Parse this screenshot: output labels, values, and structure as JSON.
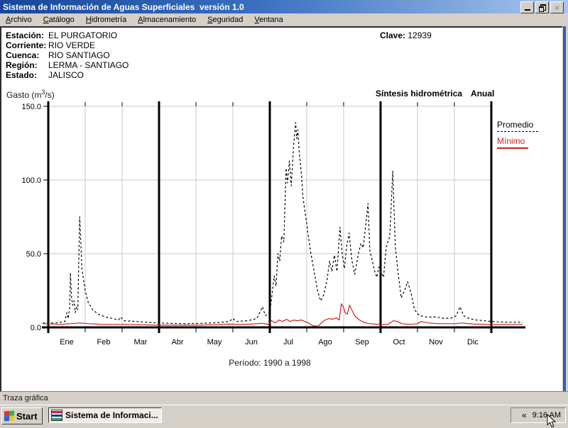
{
  "window": {
    "title": "Sistema de Información de Aguas Superficiales  versión 1.0",
    "close_glyph": "×"
  },
  "menu": {
    "items": [
      {
        "accel": "A",
        "rest": "rchivo"
      },
      {
        "accel": "C",
        "rest": "atálogo"
      },
      {
        "accel": "H",
        "rest": "idrometría"
      },
      {
        "accel": "A",
        "rest": "lmacenamiento"
      },
      {
        "accel": "S",
        "rest": "eguridad"
      },
      {
        "accel": "V",
        "rest": "entana"
      }
    ]
  },
  "station": {
    "rows": [
      {
        "label": "Estación:",
        "value": "EL PURGATORIO"
      },
      {
        "label": "Corriente:",
        "value": "RIO VERDE"
      },
      {
        "label": "Cuenca:",
        "value": "RIO SANTIAGO"
      },
      {
        "label": "Región:",
        "value": "LERMA - SANTIAGO"
      },
      {
        "label": "Estado:",
        "value": "JALISCO"
      }
    ],
    "clave_label": "Clave:",
    "clave_value": "12939"
  },
  "chart": {
    "ylabel_prefix": "Gasto (m",
    "ylabel_sup": "3",
    "ylabel_suffix": "/s)",
    "title_left": "Síntesis hidrométrica",
    "title_right": "Anual",
    "period_label": "Período: 1990 a 1998"
  },
  "status_bar": {
    "text": "Traza gráfica"
  },
  "taskbar": {
    "start_label": "Start",
    "task_label": "Sistema de Informaci...",
    "tray_chevron": "«",
    "clock": "9:16 AM"
  },
  "chart_data": {
    "type": "line",
    "title": "Síntesis hidrométrica Anual",
    "ylabel": "Gasto (m3/s)",
    "period": "Período: 1990 a 1998",
    "x_categories": [
      "Ene",
      "Feb",
      "Mar",
      "Abr",
      "May",
      "Jun",
      "Jul",
      "Ago",
      "Sep",
      "Oct",
      "Nov",
      "Dic"
    ],
    "ylim": [
      0,
      150
    ],
    "yticks": [
      0,
      50,
      100,
      150
    ],
    "ytick_labels": [
      "0.0",
      "50.0",
      "100.0",
      "150.0"
    ],
    "quarter_lines_months": [
      0,
      3,
      6,
      9,
      12
    ],
    "grid": true,
    "legend_position": "right",
    "series": [
      {
        "name": "Promedio",
        "color": "#000000",
        "style": "dashed",
        "points": [
          [
            -0.15,
            3
          ],
          [
            0.0,
            3
          ],
          [
            0.2,
            3
          ],
          [
            0.35,
            3.5
          ],
          [
            0.45,
            4
          ],
          [
            0.5,
            10
          ],
          [
            0.54,
            6
          ],
          [
            0.58,
            14
          ],
          [
            0.6,
            37
          ],
          [
            0.63,
            20
          ],
          [
            0.66,
            15
          ],
          [
            0.7,
            18
          ],
          [
            0.73,
            10
          ],
          [
            0.77,
            14
          ],
          [
            0.8,
            12
          ],
          [
            0.85,
            75
          ],
          [
            0.88,
            58
          ],
          [
            0.91,
            40
          ],
          [
            0.95,
            33
          ],
          [
            1.0,
            25
          ],
          [
            1.08,
            17
          ],
          [
            1.2,
            12
          ],
          [
            1.35,
            9
          ],
          [
            1.55,
            7
          ],
          [
            1.75,
            6
          ],
          [
            1.9,
            5
          ],
          [
            1.96,
            7
          ],
          [
            2.05,
            4.5
          ],
          [
            2.4,
            4
          ],
          [
            2.8,
            3.2
          ],
          [
            3.2,
            2.8
          ],
          [
            3.7,
            2.5
          ],
          [
            4.2,
            2.8
          ],
          [
            4.6,
            3.2
          ],
          [
            4.9,
            4
          ],
          [
            5.0,
            6
          ],
          [
            5.1,
            4
          ],
          [
            5.4,
            4.5
          ],
          [
            5.65,
            6
          ],
          [
            5.8,
            14
          ],
          [
            5.88,
            8
          ],
          [
            6.0,
            10
          ],
          [
            6.06,
            22
          ],
          [
            6.12,
            35
          ],
          [
            6.17,
            28
          ],
          [
            6.22,
            50
          ],
          [
            6.27,
            45
          ],
          [
            6.32,
            62
          ],
          [
            6.38,
            58
          ],
          [
            6.44,
            108
          ],
          [
            6.48,
            98
          ],
          [
            6.53,
            113
          ],
          [
            6.58,
            96
          ],
          [
            6.64,
            122
          ],
          [
            6.7,
            139
          ],
          [
            6.73,
            128
          ],
          [
            6.76,
            134
          ],
          [
            6.8,
            118
          ],
          [
            6.85,
            106
          ],
          [
            6.9,
            88
          ],
          [
            7.0,
            70
          ],
          [
            7.1,
            52
          ],
          [
            7.2,
            38
          ],
          [
            7.3,
            24
          ],
          [
            7.38,
            18
          ],
          [
            7.46,
            22
          ],
          [
            7.55,
            32
          ],
          [
            7.62,
            45
          ],
          [
            7.68,
            38
          ],
          [
            7.75,
            49
          ],
          [
            7.82,
            38
          ],
          [
            7.9,
            68
          ],
          [
            7.96,
            50
          ],
          [
            8.02,
            40
          ],
          [
            8.08,
            55
          ],
          [
            8.15,
            64
          ],
          [
            8.22,
            46
          ],
          [
            8.3,
            36
          ],
          [
            8.4,
            50
          ],
          [
            8.47,
            57
          ],
          [
            8.53,
            54
          ],
          [
            8.6,
            70
          ],
          [
            8.66,
            84
          ],
          [
            8.71,
            52
          ],
          [
            8.77,
            46
          ],
          [
            8.84,
            38
          ],
          [
            8.9,
            34
          ],
          [
            8.95,
            41
          ],
          [
            9.02,
            37
          ],
          [
            9.08,
            34
          ],
          [
            9.15,
            54
          ],
          [
            9.25,
            62
          ],
          [
            9.33,
            106
          ],
          [
            9.4,
            55
          ],
          [
            9.47,
            38
          ],
          [
            9.56,
            20
          ],
          [
            9.65,
            25
          ],
          [
            9.73,
            31
          ],
          [
            9.82,
            24
          ],
          [
            9.92,
            12
          ],
          [
            10.05,
            8
          ],
          [
            10.25,
            7
          ],
          [
            10.5,
            7
          ],
          [
            10.75,
            6
          ],
          [
            10.95,
            6.5
          ],
          [
            11.05,
            8
          ],
          [
            11.15,
            14
          ],
          [
            11.25,
            8
          ],
          [
            11.4,
            6
          ],
          [
            11.6,
            5
          ],
          [
            11.8,
            4.5
          ],
          [
            12.0,
            4
          ],
          [
            12.4,
            3.5
          ],
          [
            12.85,
            3.5
          ]
        ]
      },
      {
        "name": "Mínimo",
        "color": "#cc2222",
        "style": "solid",
        "points": [
          [
            -0.15,
            2.5
          ],
          [
            0.0,
            2.5
          ],
          [
            0.3,
            2
          ],
          [
            0.6,
            2.5
          ],
          [
            0.85,
            3
          ],
          [
            1.1,
            2.5
          ],
          [
            1.5,
            2
          ],
          [
            2.0,
            2
          ],
          [
            2.5,
            1.8
          ],
          [
            3.0,
            1.5
          ],
          [
            3.5,
            1.5
          ],
          [
            4.0,
            1.5
          ],
          [
            4.5,
            1.8
          ],
          [
            4.9,
            2.2
          ],
          [
            5.2,
            2
          ],
          [
            5.5,
            2.2
          ],
          [
            5.8,
            2.8
          ],
          [
            5.95,
            2
          ],
          [
            6.05,
            4.5
          ],
          [
            6.15,
            3
          ],
          [
            6.25,
            5
          ],
          [
            6.35,
            4
          ],
          [
            6.45,
            5.5
          ],
          [
            6.55,
            4
          ],
          [
            6.65,
            5
          ],
          [
            6.75,
            4.5
          ],
          [
            6.85,
            5
          ],
          [
            6.95,
            4
          ],
          [
            7.05,
            3
          ],
          [
            7.15,
            1.2
          ],
          [
            7.3,
            0.8
          ],
          [
            7.4,
            3
          ],
          [
            7.5,
            5
          ],
          [
            7.6,
            6
          ],
          [
            7.7,
            5.5
          ],
          [
            7.8,
            6.5
          ],
          [
            7.88,
            5
          ],
          [
            7.94,
            16
          ],
          [
            7.99,
            14
          ],
          [
            8.04,
            10
          ],
          [
            8.1,
            9
          ],
          [
            8.16,
            15
          ],
          [
            8.22,
            12
          ],
          [
            8.3,
            8
          ],
          [
            8.4,
            5.5
          ],
          [
            8.5,
            4
          ],
          [
            8.6,
            3
          ],
          [
            8.72,
            2.5
          ],
          [
            8.85,
            2.2
          ],
          [
            9.0,
            2
          ],
          [
            9.2,
            2
          ],
          [
            9.35,
            4.5
          ],
          [
            9.45,
            4
          ],
          [
            9.58,
            2.5
          ],
          [
            9.8,
            2
          ],
          [
            10.0,
            2.5
          ],
          [
            10.1,
            4
          ],
          [
            10.3,
            3
          ],
          [
            10.6,
            2.5
          ],
          [
            11.0,
            2.5
          ],
          [
            11.2,
            3
          ],
          [
            11.5,
            2.2
          ],
          [
            12.0,
            2
          ],
          [
            12.5,
            2
          ],
          [
            12.85,
            2
          ]
        ]
      }
    ]
  }
}
